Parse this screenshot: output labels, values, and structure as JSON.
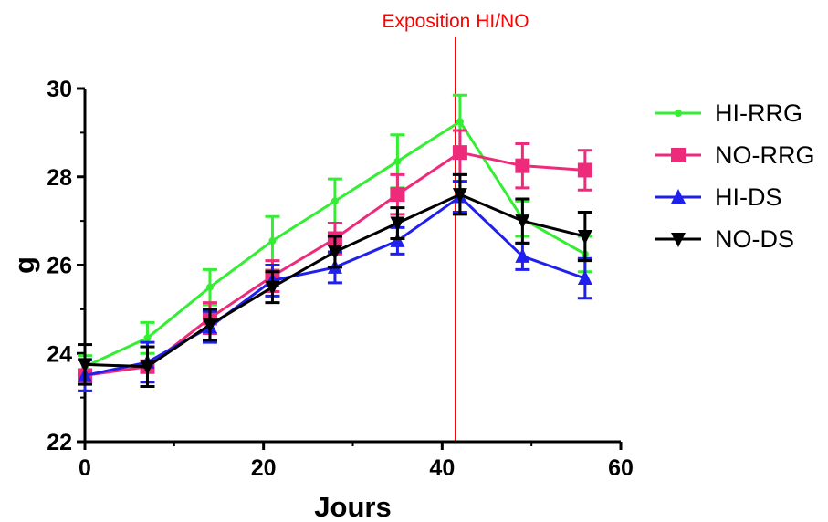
{
  "chart_data": {
    "type": "line",
    "title": "",
    "xlabel": "Jours",
    "ylabel": "g",
    "xlim": [
      0,
      60
    ],
    "ylim": [
      22,
      30
    ],
    "xticks": [
      "0",
      "20",
      "40",
      "60"
    ],
    "yticks": [
      "22",
      "24",
      "26",
      "28",
      "30"
    ],
    "grid": false,
    "legend_position": "right",
    "x": [
      0,
      7,
      14,
      21,
      28,
      35,
      42,
      49,
      56
    ],
    "series": [
      {
        "name": "HI-RRG",
        "color": "#33ee33",
        "marker": "circle",
        "values": [
          23.7,
          24.35,
          25.5,
          26.55,
          27.45,
          28.35,
          29.25,
          27.05,
          26.25
        ],
        "errors": [
          0.25,
          0.35,
          0.4,
          0.55,
          0.5,
          0.6,
          0.6,
          0.4,
          0.4
        ]
      },
      {
        "name": "NO-RRG",
        "color": "#ee2a7b",
        "marker": "square",
        "values": [
          23.5,
          23.7,
          24.8,
          25.75,
          26.6,
          27.6,
          28.55,
          28.25,
          28.15
        ],
        "errors": [
          0.35,
          0.45,
          0.35,
          0.35,
          0.35,
          0.45,
          0.5,
          0.5,
          0.45
        ]
      },
      {
        "name": "HI-DS",
        "color": "#1f1fee",
        "marker": "triangle-up",
        "values": [
          23.5,
          23.8,
          24.6,
          25.65,
          25.95,
          26.55,
          27.55,
          26.2,
          25.7
        ],
        "errors": [
          0.35,
          0.45,
          0.35,
          0.35,
          0.35,
          0.3,
          0.35,
          0.3,
          0.45
        ]
      },
      {
        "name": "NO-DS",
        "color": "#000000",
        "marker": "triangle-down",
        "values": [
          23.75,
          23.7,
          24.65,
          25.5,
          26.3,
          26.95,
          27.6,
          27.0,
          26.65
        ],
        "errors": [
          0.45,
          0.45,
          0.35,
          0.35,
          0.35,
          0.35,
          0.45,
          0.5,
          0.55
        ]
      }
    ],
    "annotations": [
      {
        "type": "vline",
        "x": 41.5,
        "color": "#ff0000",
        "label": "Exposition HI/NO"
      }
    ]
  }
}
